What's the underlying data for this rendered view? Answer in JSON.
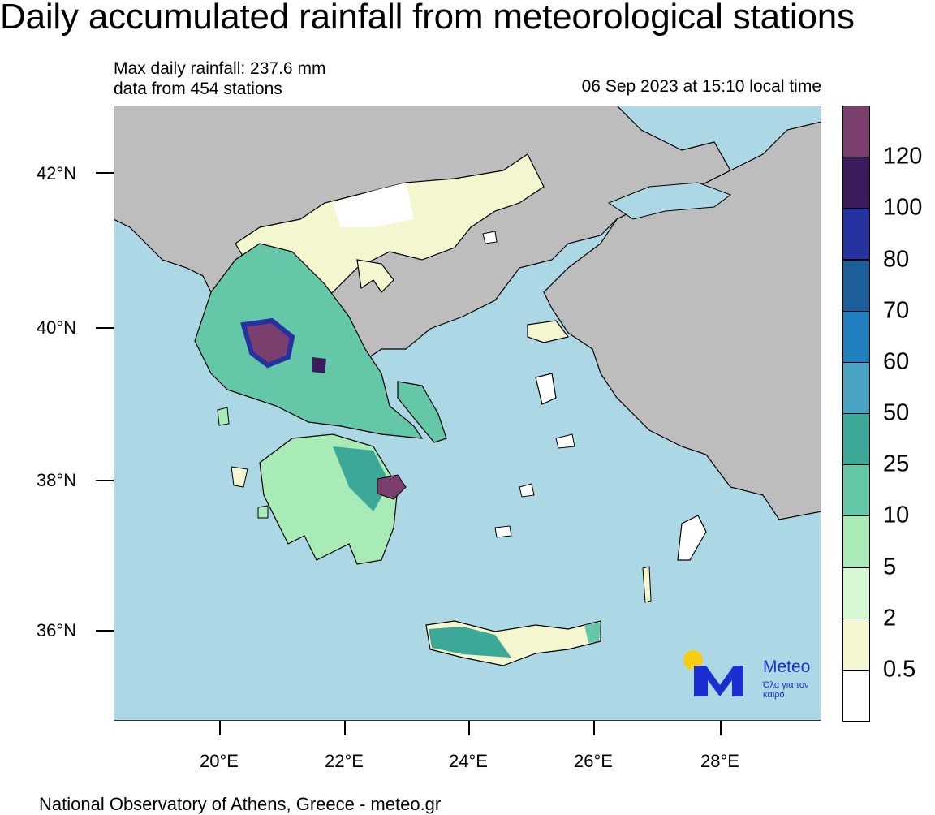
{
  "title": "Daily accumulated rainfall from meteorological stations",
  "info": {
    "max_line": "Max daily rainfall: 237.6 mm",
    "stations_line": "data from 454 stations",
    "timestamp": "06 Sep 2023 at 15:10 local time"
  },
  "axes": {
    "lat_labels": [
      "42°N",
      "40°N",
      "38°N",
      "36°N"
    ],
    "lon_labels": [
      "20°E",
      "22°E",
      "24°E",
      "26°E",
      "28°E"
    ]
  },
  "legend": {
    "levels": [
      "0.5",
      "2",
      "5",
      "10",
      "25",
      "50",
      "60",
      "70",
      "80",
      "100",
      "120"
    ],
    "colors": [
      "#ffffff",
      "#f3f6cf",
      "#d5f7d2",
      "#a8ebb6",
      "#64c7a8",
      "#3ca898",
      "#4aa2c4",
      "#227fbf",
      "#1c5f9a",
      "#2532a0",
      "#3b1b5c",
      "#7a3f6c"
    ]
  },
  "colors": {
    "sea": "#acd8e6",
    "land_outside": "#bdbdbd",
    "coast": "#000000",
    "brand": "#1a2fd0",
    "sun": "#f7cc12"
  },
  "logo": {
    "name": "Meteo",
    "tagline": "Όλα για τον καιρό"
  },
  "footer": "National Observatory of Athens, Greece - meteo.gr"
}
